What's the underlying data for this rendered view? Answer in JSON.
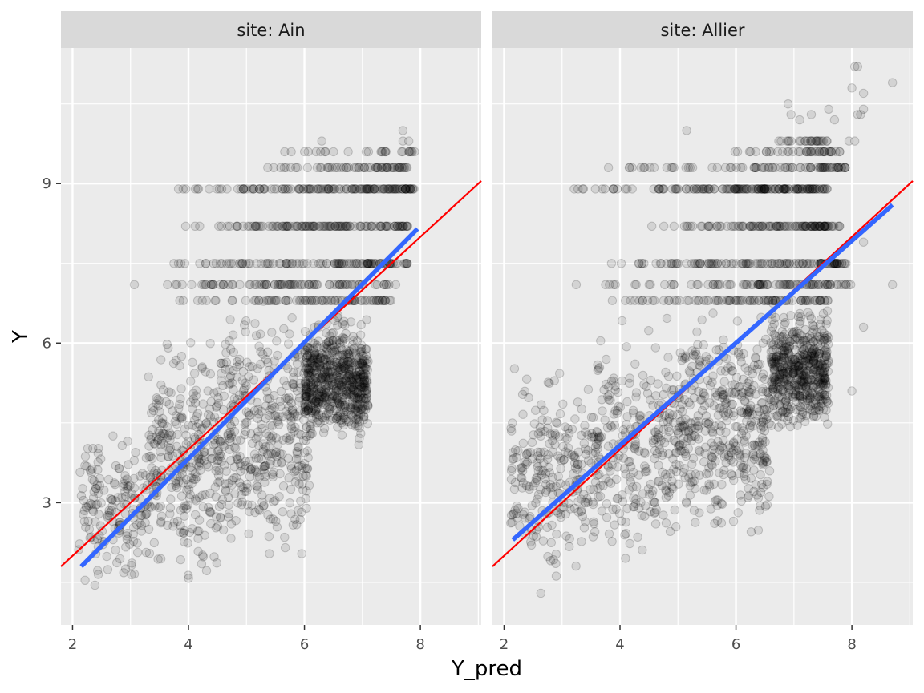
{
  "chart_data": {
    "type": "scatter",
    "xlabel": "Y_pred",
    "ylabel": "Y",
    "xlim": [
      1.8,
      9.05
    ],
    "ylim": [
      0.7,
      11.55
    ],
    "x_ticks": [
      2,
      4,
      6,
      8
    ],
    "y_ticks": [
      3,
      6,
      9
    ],
    "grid": true,
    "background": "#ebebeb",
    "strip_color": "#d9d9d9",
    "point_color": "#000000",
    "point_alpha": 0.1,
    "reference_line": {
      "label": "y = x",
      "color": "#ff0000",
      "slope": 1,
      "intercept": 0
    },
    "fit_line_color": "#3366ff",
    "panels": [
      {
        "strip": "site: Ain",
        "fit_line": {
          "x": [
            2.15,
            7.95
          ],
          "y": [
            1.8,
            8.15
          ]
        },
        "point_bands": [
          {
            "x_range": [
              2.1,
              3.3
            ],
            "y_range": [
              1.1,
              4.6
            ],
            "n": 170
          },
          {
            "x_range": [
              3.3,
              4.6
            ],
            "y_range": [
              1.2,
              6.6
            ],
            "n": 320
          },
          {
            "x_range": [
              4.6,
              6.1
            ],
            "y_range": [
              1.2,
              7.2
            ],
            "n": 380
          },
          {
            "x_range": [
              6.0,
              7.1
            ],
            "y_range": [
              3.9,
              6.7
            ],
            "n": 650
          }
        ],
        "point_rows": [
          {
            "y": 8.9,
            "x_range": [
              3.4,
              7.9
            ],
            "n": 140
          },
          {
            "y": 8.2,
            "x_range": [
              3.6,
              7.8
            ],
            "n": 120
          },
          {
            "y": 9.3,
            "x_range": [
              5.0,
              7.8
            ],
            "n": 60
          },
          {
            "y": 7.5,
            "x_range": [
              3.0,
              7.8
            ],
            "n": 110
          },
          {
            "y": 7.1,
            "x_range": [
              3.0,
              7.6
            ],
            "n": 90
          },
          {
            "y": 6.8,
            "x_range": [
              3.5,
              7.6
            ],
            "n": 80
          },
          {
            "y": 9.6,
            "x_range": [
              5.4,
              7.9
            ],
            "n": 25
          }
        ],
        "extra_points": [
          [
            7.7,
            10.0
          ],
          [
            7.7,
            9.8
          ],
          [
            7.8,
            9.8
          ],
          [
            7.9,
            9.6
          ],
          [
            6.3,
            9.8
          ]
        ]
      },
      {
        "strip": "site: Allier",
        "fit_line": {
          "x": [
            2.15,
            8.7
          ],
          "y": [
            2.3,
            8.6
          ]
        },
        "point_bands": [
          {
            "x_range": [
              2.1,
              3.6
            ],
            "y_range": [
              1.1,
              5.9
            ],
            "n": 260
          },
          {
            "x_range": [
              3.6,
              5.0
            ],
            "y_range": [
              1.5,
              6.7
            ],
            "n": 260
          },
          {
            "x_range": [
              5.0,
              6.6
            ],
            "y_range": [
              2.0,
              7.0
            ],
            "n": 420
          },
          {
            "x_range": [
              6.6,
              7.6
            ],
            "y_range": [
              4.1,
              6.9
            ],
            "n": 550
          }
        ],
        "point_rows": [
          {
            "y": 8.9,
            "x_range": [
              2.8,
              7.6
            ],
            "n": 160
          },
          {
            "y": 8.2,
            "x_range": [
              4.5,
              7.8
            ],
            "n": 110
          },
          {
            "y": 9.3,
            "x_range": [
              3.7,
              7.9
            ],
            "n": 80
          },
          {
            "y": 7.5,
            "x_range": [
              3.6,
              7.9
            ],
            "n": 120
          },
          {
            "y": 7.1,
            "x_range": [
              3.2,
              8.0
            ],
            "n": 90
          },
          {
            "y": 6.8,
            "x_range": [
              3.5,
              7.6
            ],
            "n": 90
          },
          {
            "y": 9.6,
            "x_range": [
              5.7,
              7.8
            ],
            "n": 40
          },
          {
            "y": 9.8,
            "x_range": [
              6.6,
              7.6
            ],
            "n": 25
          }
        ],
        "extra_points": [
          [
            8.1,
            11.2
          ],
          [
            8.05,
            11.2
          ],
          [
            8.0,
            10.8
          ],
          [
            8.2,
            10.7
          ],
          [
            8.7,
            10.9
          ],
          [
            6.9,
            10.5
          ],
          [
            7.6,
            10.4
          ],
          [
            8.2,
            10.4
          ],
          [
            8.15,
            10.3
          ],
          [
            8.1,
            10.3
          ],
          [
            6.95,
            10.3
          ],
          [
            7.3,
            10.3
          ],
          [
            7.1,
            10.2
          ],
          [
            7.7,
            10.2
          ],
          [
            8.05,
            9.8
          ],
          [
            7.95,
            9.8
          ],
          [
            5.15,
            10.0
          ],
          [
            8.7,
            7.1
          ],
          [
            8.2,
            6.3
          ],
          [
            8.0,
            5.1
          ],
          [
            8.2,
            7.9
          ]
        ]
      }
    ]
  }
}
